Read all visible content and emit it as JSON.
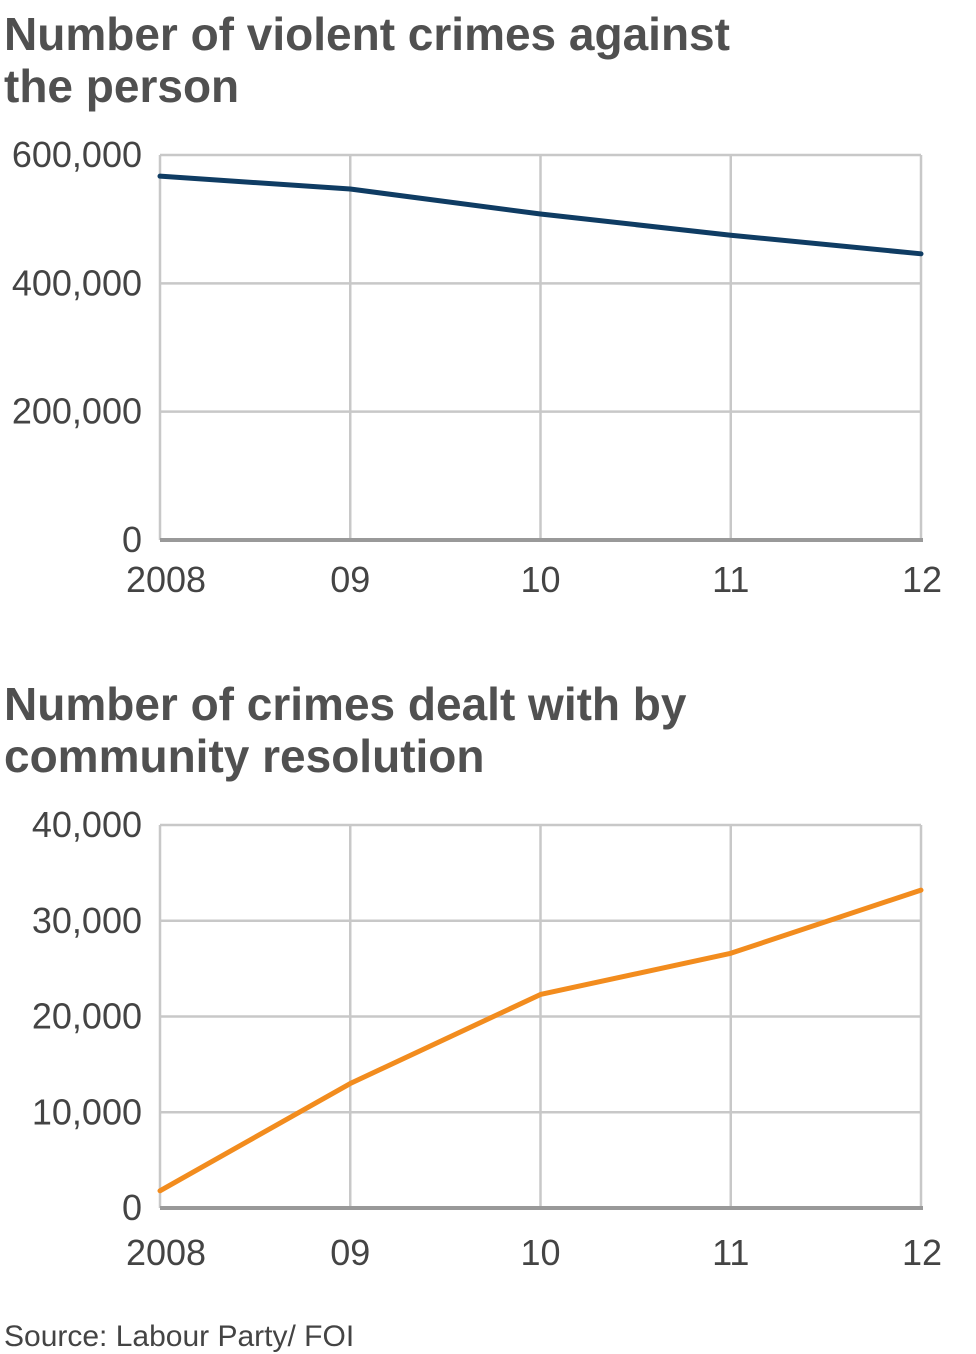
{
  "chart_data": [
    {
      "type": "line",
      "title_lines": [
        "Number of violent crimes against",
        "the person"
      ],
      "x": [
        "2008",
        "09",
        "10",
        "11",
        "12"
      ],
      "series": [
        {
          "name": "Violent crimes against the person",
          "values": [
            567000,
            547000,
            508000,
            475000,
            446000
          ],
          "color": "#0f3c63"
        }
      ],
      "yticks": [
        0,
        200000,
        400000,
        600000
      ],
      "ytick_labels": [
        "0",
        "200,000",
        "400,000",
        "600,000"
      ],
      "ylim": [
        0,
        600000
      ],
      "grid": true,
      "xlabel": "",
      "ylabel": ""
    },
    {
      "type": "line",
      "title_lines": [
        "Number of crimes dealt with by",
        "community resolution"
      ],
      "x": [
        "2008",
        "09",
        "10",
        "11",
        "12"
      ],
      "series": [
        {
          "name": "Crimes dealt with by community resolution",
          "values": [
            1800,
            13000,
            22300,
            26600,
            33200
          ],
          "color": "#f28c1e"
        }
      ],
      "yticks": [
        0,
        10000,
        20000,
        30000,
        40000
      ],
      "ytick_labels": [
        "0",
        "10,000",
        "20,000",
        "30,000",
        "40,000"
      ],
      "ylim": [
        0,
        40000
      ],
      "grid": true,
      "xlabel": "",
      "ylabel": ""
    }
  ],
  "source": "Source: Labour Party/ FOI"
}
